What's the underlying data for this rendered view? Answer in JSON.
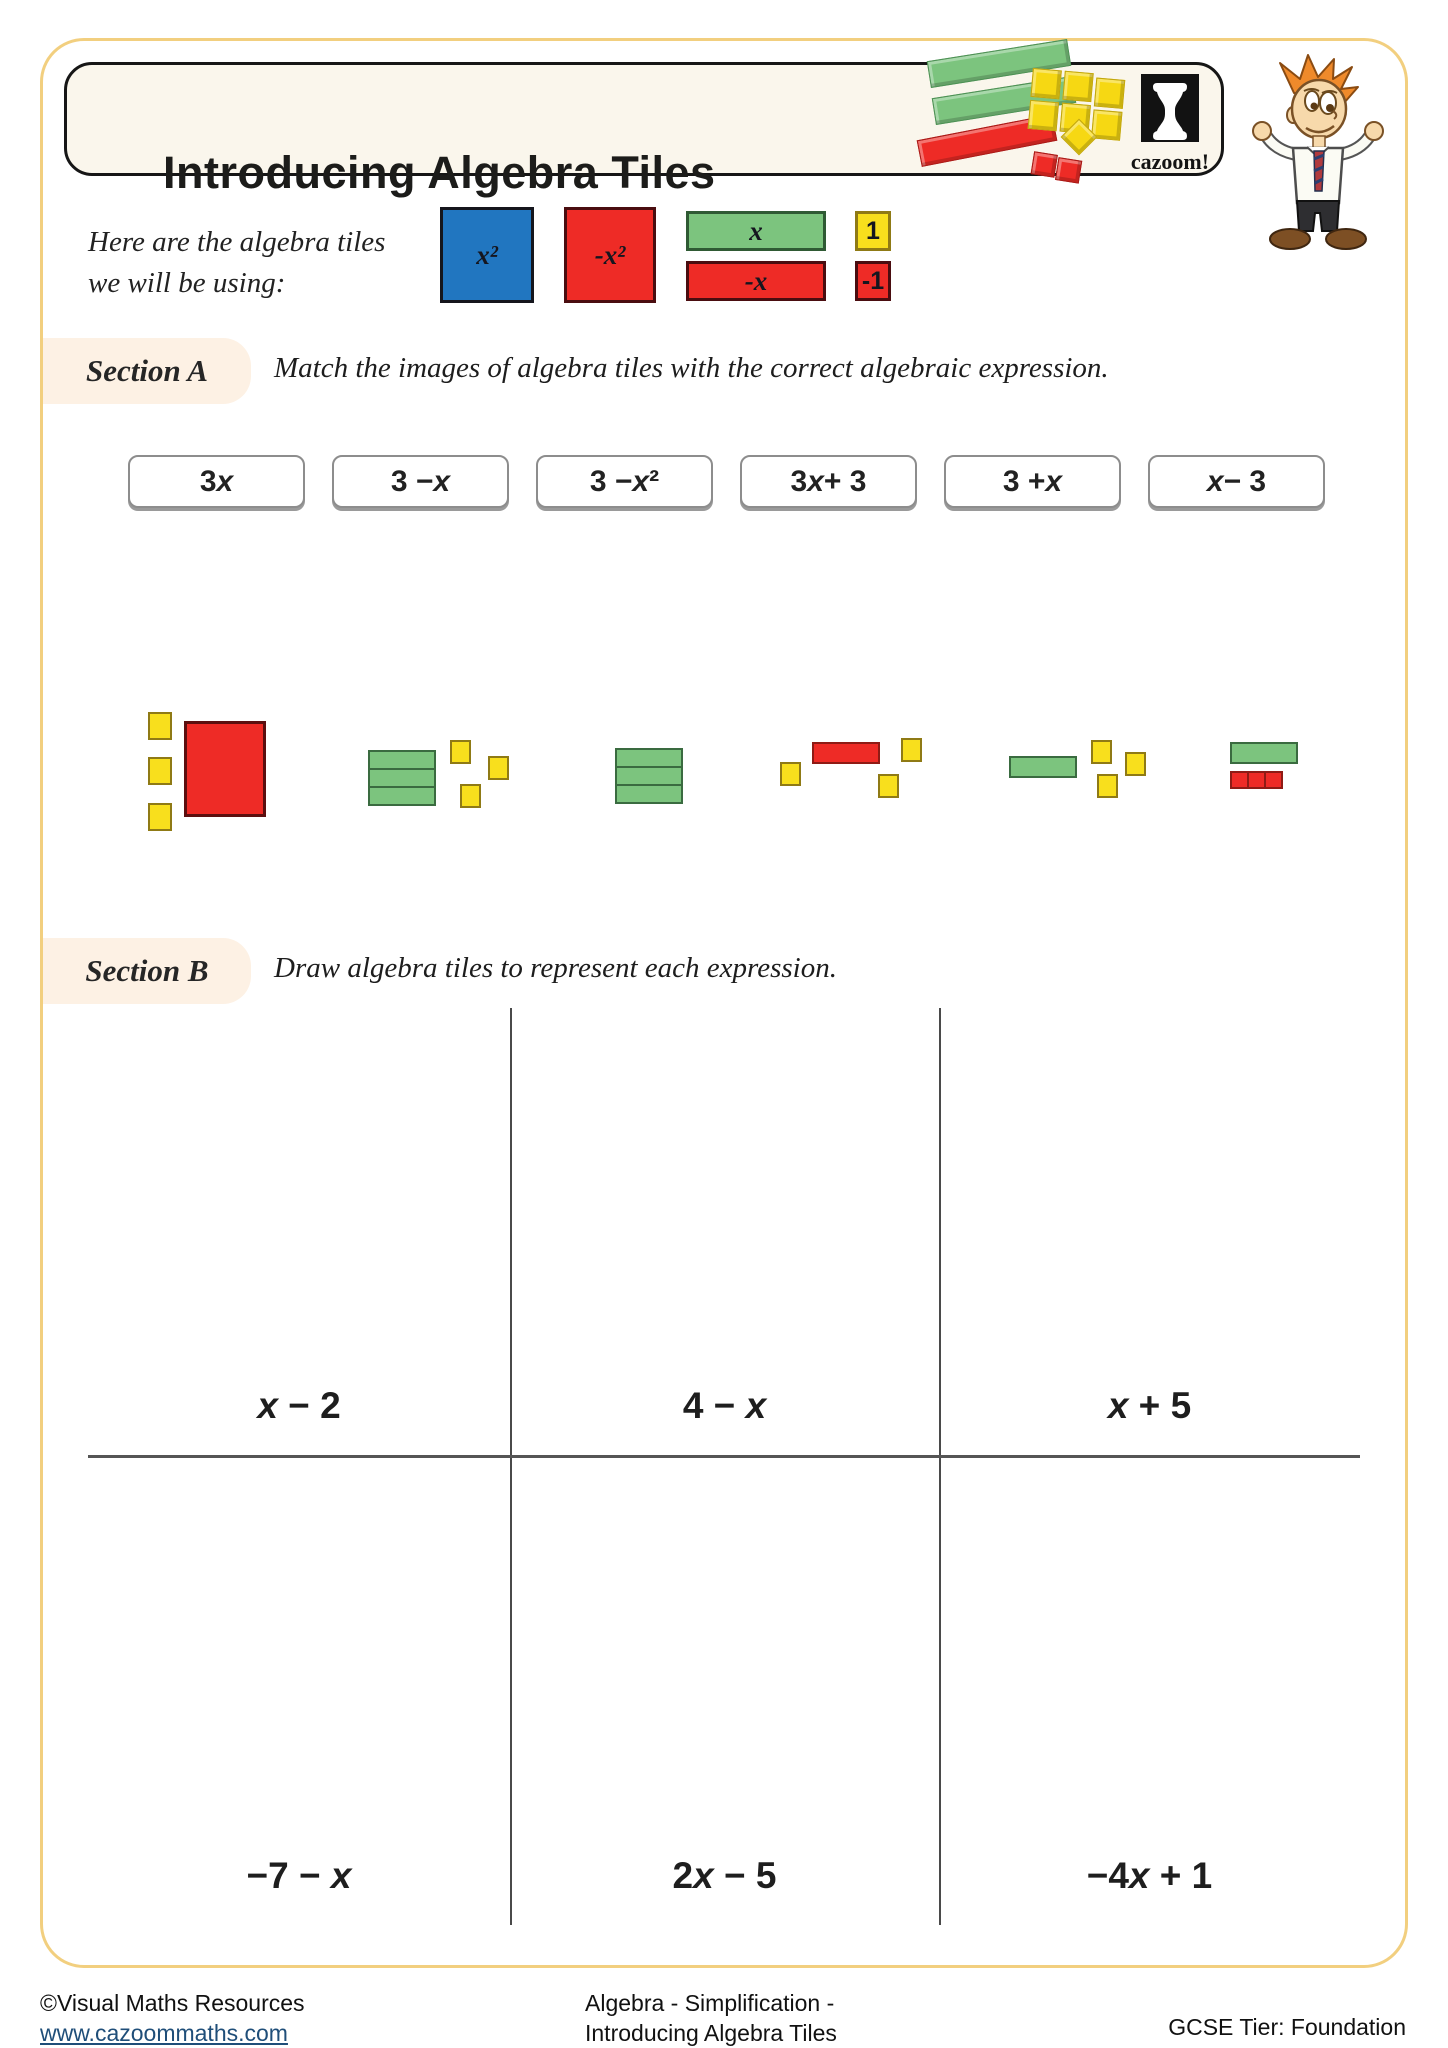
{
  "page": {
    "title": "Introducing Algebra Tiles"
  },
  "branding": {
    "logo_text": "cazoom!"
  },
  "legend": {
    "intro_line1": "Here are the algebra tiles",
    "intro_line2": "we will be using:",
    "tiles": [
      {
        "name": "x-squared-tile",
        "label": "x²",
        "color": "#2176c0"
      },
      {
        "name": "negative-x-squared-tile",
        "label": "-x²",
        "color": "#ee2b26"
      },
      {
        "name": "x-tile",
        "label": "x",
        "color": "#7cc47e"
      },
      {
        "name": "negative-x-tile",
        "label": "-x",
        "color": "#ee2b26"
      },
      {
        "name": "one-tile",
        "label": "1",
        "color": "#f8df1d"
      },
      {
        "name": "negative-one-tile",
        "label": "-1",
        "color": "#ee2b26"
      }
    ]
  },
  "section_a": {
    "label": "Section A",
    "instruction": "Match the images of algebra tiles with the correct algebraic expression.",
    "expressions": [
      "3x",
      "3 − x",
      "3 − x²",
      "3x + 3",
      "3 + x",
      "x − 3"
    ],
    "tile_images": [
      "3 yellow unit squares and 1 large red square",
      "3 green x bars and 3 yellow unit squares",
      "3 green x bars",
      "1 red x bar and 3 yellow unit squares",
      "1 green x bar and 3 yellow unit squares",
      "1 green x bar and 3 red unit squares"
    ]
  },
  "section_b": {
    "label": "Section B",
    "instruction": "Draw algebra tiles to represent each expression.",
    "cells": [
      "x − 2",
      "4 − x",
      "x + 5",
      "−7 − x",
      "2x − 5",
      "−4x + 1"
    ]
  },
  "footer": {
    "copyright": "©Visual Maths Resources",
    "website": "www.cazoommaths.com",
    "center_line1": "Algebra - Simplification -",
    "center_line2": "Introducing Algebra Tiles",
    "tier": "GCSE Tier: Foundation"
  },
  "colors": {
    "page_border": "#f2cf7f",
    "panel_bg": "#faf6ec",
    "section_label_bg": "#fdf1e4",
    "blue": "#2176c0",
    "red": "#ee2b26",
    "green": "#7cc47e",
    "yellow": "#f8df1d",
    "link": "#1f4e79"
  }
}
